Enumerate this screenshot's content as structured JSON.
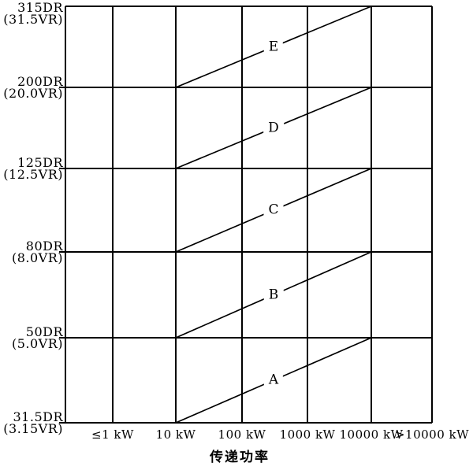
{
  "chart_data": {
    "type": "line",
    "title": "",
    "xlabel": "传递功率",
    "x_axis": {
      "label": "传递功率",
      "ticks": [
        "≤1 kW",
        "10 kW",
        "100 kW",
        "1000 kW",
        "10000 kW",
        ">10000 kW"
      ]
    },
    "y_axis": {
      "ticks": [
        {
          "line1": "31.5DR",
          "line2": "(3.15VR)"
        },
        {
          "line1": "50DR",
          "line2": "(5.0VR)"
        },
        {
          "line1": "80DR",
          "line2": "(8.0VR)"
        },
        {
          "line1": "125DR",
          "line2": "(12.5VR)"
        },
        {
          "line1": "200DR",
          "line2": "(20.0VR)"
        },
        {
          "line1": "315DR",
          "line2": "(31.5VR)"
        }
      ]
    },
    "grid": true,
    "legend": "none",
    "series": [
      {
        "label": "A",
        "from": {
          "power": "10 kW",
          "grade": "31.5DR"
        },
        "to": {
          "power": "10000 kW",
          "grade": "50DR"
        }
      },
      {
        "label": "B",
        "from": {
          "power": "10 kW",
          "grade": "50DR"
        },
        "to": {
          "power": "10000 kW",
          "grade": "80DR"
        }
      },
      {
        "label": "C",
        "from": {
          "power": "10 kW",
          "grade": "80DR"
        },
        "to": {
          "power": "10000 kW",
          "grade": "125DR"
        }
      },
      {
        "label": "D",
        "from": {
          "power": "10 kW",
          "grade": "125DR"
        },
        "to": {
          "power": "10000 kW",
          "grade": "200DR"
        }
      },
      {
        "label": "E",
        "from": {
          "power": "10 kW",
          "grade": "200DR"
        },
        "to": {
          "power": "10000 kW",
          "grade": "315DR"
        }
      }
    ],
    "colors": {
      "ink": "#000000",
      "background": "#ffffff"
    }
  }
}
